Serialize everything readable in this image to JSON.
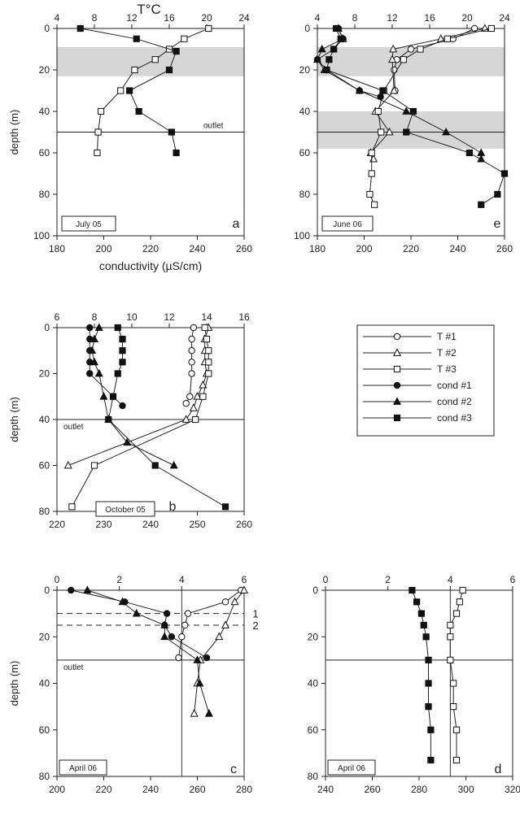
{
  "figure": {
    "top_axis_title": "T°C",
    "legend": [
      {
        "label": "T #1",
        "marker": "circle",
        "filled": false
      },
      {
        "label": "T #2",
        "marker": "triangle",
        "filled": false
      },
      {
        "label": "T #3",
        "marker": "square",
        "filled": false
      },
      {
        "label": "cond #1",
        "marker": "circle",
        "filled": true
      },
      {
        "label": "cond #2",
        "marker": "triangle",
        "filled": true
      },
      {
        "label": "cond #3",
        "marker": "square",
        "filled": true
      }
    ]
  },
  "chart_data": [
    {
      "id": "a",
      "type": "scatter",
      "panel_label": "a",
      "date": "July 05",
      "ylabel": "depth (m)",
      "xlabel": "conductivity (µS/cm)",
      "top_label": "",
      "ylim": [
        0,
        100
      ],
      "yticks": [
        0,
        20,
        40,
        60,
        80,
        100
      ],
      "xlim_cond": [
        180,
        260
      ],
      "xticks_cond": [
        180,
        200,
        220,
        240,
        260
      ],
      "xlim_T": [
        4,
        24
      ],
      "xticks_T": [
        4,
        8,
        12,
        16,
        20,
        24
      ],
      "bands": [
        [
          9,
          23
        ]
      ],
      "hlines": [
        50
      ],
      "outlet_depth": 50,
      "outlet_text": "outlet",
      "vlines_T": [],
      "dashed": [],
      "series": [
        {
          "name": "T #3",
          "axis": "T",
          "marker": "square",
          "filled": false,
          "points": [
            [
              20.2,
              0
            ],
            [
              17.6,
              5
            ],
            [
              16,
              10
            ],
            [
              14.5,
              15
            ],
            [
              12.3,
              20
            ],
            [
              10.8,
              30
            ],
            [
              8.7,
              40
            ],
            [
              8.4,
              50
            ],
            [
              8.3,
              60
            ]
          ]
        },
        {
          "name": "cond #3",
          "axis": "cond",
          "marker": "square",
          "filled": true,
          "points": [
            [
              190,
              0
            ],
            [
              214,
              5
            ],
            [
              231,
              11
            ],
            [
              228,
              20
            ],
            [
              211,
              30
            ],
            [
              215,
              40
            ],
            [
              229,
              50
            ],
            [
              231,
              60
            ]
          ]
        }
      ]
    },
    {
      "id": "e",
      "type": "scatter",
      "panel_label": "e",
      "date": "June 06",
      "ylabel": "",
      "xlabel": "",
      "top_label": "",
      "ylim": [
        0,
        100
      ],
      "yticks": [
        0,
        20,
        40,
        60,
        80,
        100
      ],
      "xlim_cond": [
        180,
        260
      ],
      "xticks_cond": [
        180,
        200,
        220,
        240,
        260
      ],
      "xlim_T": [
        4,
        24
      ],
      "xticks_T": [
        4,
        8,
        12,
        16,
        20,
        24
      ],
      "bands": [
        [
          9,
          23
        ],
        [
          40,
          58
        ]
      ],
      "hlines": [
        50
      ],
      "outlet_depth": null,
      "outlet_text": "",
      "vlines_T": [],
      "dashed": [],
      "series": [
        {
          "name": "T #1",
          "axis": "T",
          "marker": "circle",
          "filled": false,
          "points": [
            [
              20.8,
              0
            ],
            [
              18.5,
              5
            ],
            [
              14,
              10
            ],
            [
              12.5,
              15
            ],
            [
              12.2,
              20
            ],
            [
              12.3,
              30
            ]
          ]
        },
        {
          "name": "T #2",
          "axis": "T",
          "marker": "triangle",
          "filled": false,
          "points": [
            [
              21.9,
              0
            ],
            [
              17.2,
              5
            ],
            [
              12.1,
              10
            ],
            [
              12,
              15
            ],
            [
              12.2,
              30
            ],
            [
              10.2,
              40
            ],
            [
              11.7,
              50
            ],
            [
              9.7,
              60
            ],
            [
              10,
              63
            ]
          ]
        },
        {
          "name": "T #3",
          "axis": "T",
          "marker": "square",
          "filled": false,
          "points": [
            [
              22.6,
              0
            ],
            [
              17.9,
              5
            ],
            [
              15,
              10
            ],
            [
              13.2,
              15
            ],
            [
              11.1,
              30
            ],
            [
              10.5,
              40
            ],
            [
              10.8,
              50
            ],
            [
              9.8,
              60
            ],
            [
              9.8,
              70
            ],
            [
              9.6,
              80
            ],
            [
              10.1,
              85
            ]
          ]
        },
        {
          "name": "cond #1",
          "axis": "cond",
          "marker": "circle",
          "filled": true,
          "points": [
            [
              189,
              0
            ],
            [
              191,
              5
            ],
            [
              187,
              10
            ],
            [
              180,
              15
            ],
            [
              184,
              20
            ],
            [
              198,
              30
            ],
            [
              207,
              33
            ]
          ]
        },
        {
          "name": "cond #2",
          "axis": "cond",
          "marker": "triangle",
          "filled": true,
          "points": [
            [
              189,
              0
            ],
            [
              191,
              5
            ],
            [
              182,
              10
            ],
            [
              180,
              15
            ],
            [
              183,
              20
            ],
            [
              198,
              30
            ],
            [
              218,
              40
            ],
            [
              235,
              50
            ],
            [
              250,
              60
            ],
            [
              250,
              63
            ]
          ]
        },
        {
          "name": "cond #3",
          "axis": "cond",
          "marker": "square",
          "filled": true,
          "points": [
            [
              188,
              0
            ],
            [
              190,
              5
            ],
            [
              187,
              10
            ],
            [
              185,
              15
            ],
            [
              184,
              20
            ],
            [
              208,
              30
            ],
            [
              221,
              40
            ],
            [
              218,
              50
            ],
            [
              245,
              60
            ],
            [
              260,
              70
            ],
            [
              257,
              80
            ],
            [
              250,
              85
            ]
          ]
        }
      ]
    },
    {
      "id": "b",
      "type": "scatter",
      "panel_label": "b",
      "date": "October 05",
      "ylabel": "depth (m)",
      "xlabel": "",
      "top_label": "",
      "ylim": [
        0,
        80
      ],
      "yticks": [
        0,
        20,
        40,
        60,
        80
      ],
      "xlim_cond": [
        220,
        260
      ],
      "xticks_cond": [
        220,
        230,
        240,
        250,
        260
      ],
      "xlim_T": [
        6,
        16
      ],
      "xticks_T": [
        6,
        8,
        10,
        12,
        14,
        16
      ],
      "bands": [],
      "hlines": [
        40
      ],
      "outlet_depth": 40,
      "outlet_text": "outlet",
      "vlines_T": [],
      "dashed": [],
      "series": [
        {
          "name": "T #1",
          "axis": "T",
          "marker": "circle",
          "filled": false,
          "points": [
            [
              13.3,
              0
            ],
            [
              13.2,
              5
            ],
            [
              13.2,
              10
            ],
            [
              13.2,
              15
            ],
            [
              13.2,
              20
            ],
            [
              13.1,
              30
            ],
            [
              12.9,
              33
            ]
          ]
        },
        {
          "name": "T #2",
          "axis": "T",
          "marker": "triangle",
          "filled": false,
          "points": [
            [
              14.1,
              0
            ],
            [
              13.9,
              5
            ],
            [
              13.9,
              10
            ],
            [
              13.9,
              15
            ],
            [
              14,
              20
            ],
            [
              13.8,
              25
            ],
            [
              13.5,
              30
            ],
            [
              13.3,
              35
            ],
            [
              12.9,
              40
            ],
            [
              6.6,
              60
            ]
          ]
        },
        {
          "name": "T #3",
          "axis": "T",
          "marker": "square",
          "filled": false,
          "points": [
            [
              13.9,
              0
            ],
            [
              14,
              5
            ],
            [
              14.1,
              10
            ],
            [
              14.1,
              15
            ],
            [
              14.1,
              20
            ],
            [
              13.8,
              30
            ],
            [
              13.4,
              40
            ],
            [
              8,
              60
            ],
            [
              6.8,
              78
            ]
          ]
        },
        {
          "name": "cond #1",
          "axis": "cond",
          "marker": "circle",
          "filled": true,
          "points": [
            [
              227,
              0
            ],
            [
              227,
              5
            ],
            [
              227,
              10
            ],
            [
              227,
              15
            ],
            [
              227,
              20
            ],
            [
              232,
              30
            ],
            [
              234,
              34
            ]
          ]
        },
        {
          "name": "cond #2",
          "axis": "cond",
          "marker": "triangle",
          "filled": true,
          "points": [
            [
              229,
              0
            ],
            [
              228,
              5
            ],
            [
              227.5,
              10
            ],
            [
              228,
              15
            ],
            [
              229,
              20
            ],
            [
              230,
              30
            ],
            [
              231,
              40
            ],
            [
              235,
              50
            ],
            [
              245,
              60
            ]
          ]
        },
        {
          "name": "cond #3",
          "axis": "cond",
          "marker": "square",
          "filled": true,
          "points": [
            [
              233,
              0
            ],
            [
              234,
              5
            ],
            [
              234,
              10
            ],
            [
              234,
              15
            ],
            [
              233,
              20
            ],
            [
              232,
              30
            ],
            [
              231,
              40
            ],
            [
              241,
              60
            ],
            [
              256,
              78
            ]
          ]
        }
      ]
    },
    {
      "id": "c",
      "type": "scatter",
      "panel_label": "c",
      "date": "April 06",
      "ylabel": "depth (m)",
      "xlabel": "",
      "top_label": "",
      "ylim": [
        0,
        80
      ],
      "yticks": [
        0,
        20,
        40,
        60,
        80
      ],
      "xlim_cond": [
        200,
        280
      ],
      "xticks_cond": [
        200,
        220,
        240,
        260,
        280
      ],
      "xlim_T": [
        0,
        6
      ],
      "xticks_T": [
        0,
        2,
        4,
        6
      ],
      "bands": [],
      "hlines": [
        30
      ],
      "outlet_depth": 30,
      "outlet_text": "outlet",
      "vlines_T": [
        4
      ],
      "dashed": [
        {
          "depth": 10,
          "label": "1"
        },
        {
          "depth": 15,
          "label": "2"
        }
      ],
      "series": [
        {
          "name": "T #1",
          "axis": "T",
          "marker": "circle",
          "filled": false,
          "points": [
            [
              5.9,
              0
            ],
            [
              5.4,
              5
            ],
            [
              4.2,
              10
            ],
            [
              4.1,
              15
            ],
            [
              4,
              20
            ],
            [
              3.9,
              29
            ]
          ]
        },
        {
          "name": "T #2",
          "axis": "T",
          "marker": "triangle",
          "filled": false,
          "points": [
            [
              6,
              0
            ],
            [
              5.7,
              5
            ],
            [
              5.4,
              15
            ],
            [
              5.2,
              20
            ],
            [
              4.6,
              30
            ],
            [
              4.5,
              40
            ],
            [
              4.4,
              53
            ]
          ]
        },
        {
          "name": "cond #1",
          "axis": "cond",
          "marker": "circle",
          "filled": true,
          "points": [
            [
              206,
              0
            ],
            [
              229,
              5
            ],
            [
              247,
              10
            ],
            [
              246,
              15
            ],
            [
              249,
              20
            ],
            [
              264,
              29
            ]
          ]
        },
        {
          "name": "cond #2",
          "axis": "cond",
          "marker": "triangle",
          "filled": true,
          "points": [
            [
              213,
              0
            ],
            [
              228,
              5
            ],
            [
              234,
              10
            ],
            [
              246,
              15
            ],
            [
              246,
              20
            ],
            [
              260,
              30
            ],
            [
              261,
              40
            ],
            [
              265,
              53
            ]
          ]
        }
      ]
    },
    {
      "id": "d",
      "type": "scatter",
      "panel_label": "d",
      "date": "April 06",
      "ylabel": "",
      "xlabel": "",
      "top_label": "",
      "ylim": [
        0,
        80
      ],
      "yticks": [
        0,
        20,
        40,
        60,
        80
      ],
      "xlim_cond": [
        240,
        320
      ],
      "xticks_cond": [
        240,
        260,
        280,
        300,
        320
      ],
      "xlim_T": [
        0,
        6
      ],
      "xticks_T": [
        0,
        2,
        4,
        6
      ],
      "bands": [],
      "hlines": [
        30
      ],
      "outlet_depth": null,
      "outlet_text": "",
      "vlines_T": [
        4
      ],
      "dashed": [],
      "series": [
        {
          "name": "T #3",
          "axis": "T",
          "marker": "square",
          "filled": false,
          "points": [
            [
              4.4,
              0
            ],
            [
              4.3,
              5
            ],
            [
              4.2,
              10
            ],
            [
              4,
              15
            ],
            [
              4,
              20
            ],
            [
              4,
              30
            ],
            [
              4.1,
              40
            ],
            [
              4.1,
              50
            ],
            [
              4.2,
              60
            ],
            [
              4.2,
              73
            ]
          ]
        },
        {
          "name": "cond #3",
          "axis": "cond",
          "marker": "square",
          "filled": true,
          "points": [
            [
              277,
              0
            ],
            [
              279,
              5
            ],
            [
              281,
              10
            ],
            [
              282,
              15
            ],
            [
              283,
              20
            ],
            [
              284,
              30
            ],
            [
              284,
              40
            ],
            [
              284,
              50
            ],
            [
              285,
              60
            ],
            [
              285,
              73
            ]
          ]
        }
      ]
    }
  ]
}
